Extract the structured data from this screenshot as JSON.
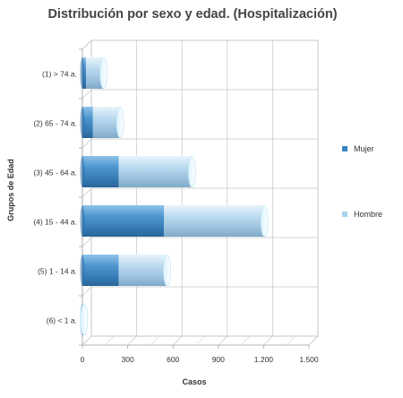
{
  "chart_data": {
    "type": "bar",
    "orientation": "horizontal",
    "stacked": true,
    "style": "3d-cylinder",
    "title": "Distribución por sexo y edad. (Hospitalización)",
    "xlabel": "Casos",
    "ylabel": "Grupos de Edad",
    "categories": [
      "(1) > 74 a.",
      "(2) 65 - 74 a.",
      "(3) 45 - 64 a.",
      "(4) 15 - 44 a.",
      "(5) 1 - 14 a.",
      "(6) < 1 a."
    ],
    "series": [
      {
        "name": "Mujer",
        "color": "#3a84c0",
        "values": [
          25,
          70,
          240,
          540,
          240,
          3
        ]
      },
      {
        "name": "Hombre",
        "color": "#a9d2ee",
        "values": [
          115,
          180,
          485,
          665,
          320,
          8
        ]
      }
    ],
    "xlim": [
      0,
      1500
    ],
    "xticks": [
      0,
      300,
      600,
      900,
      1200,
      1500
    ],
    "xtick_labels": [
      "0",
      "300",
      "600",
      "900",
      "1.200",
      "1.500"
    ],
    "grid": true,
    "legend": "right"
  }
}
